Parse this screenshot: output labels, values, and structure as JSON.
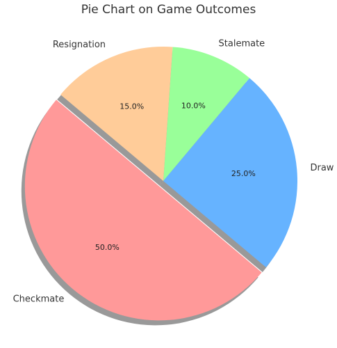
{
  "chart_data": {
    "type": "pie",
    "title": "Pie Chart on Game Outcomes",
    "categories": [
      "Checkmate",
      "Draw",
      "Stalemate",
      "Resignation"
    ],
    "values": [
      50.0,
      25.0,
      10.0,
      15.0
    ],
    "percent_labels": [
      "50.0%",
      "25.0%",
      "10.0%",
      "15.0%"
    ],
    "colors": [
      "#ff9999",
      "#66b3ff",
      "#99ff99",
      "#ffcc99"
    ],
    "explode": [
      0.05,
      0,
      0,
      0
    ],
    "start_angle_deg": 140,
    "shadow": true,
    "legend": "none"
  }
}
